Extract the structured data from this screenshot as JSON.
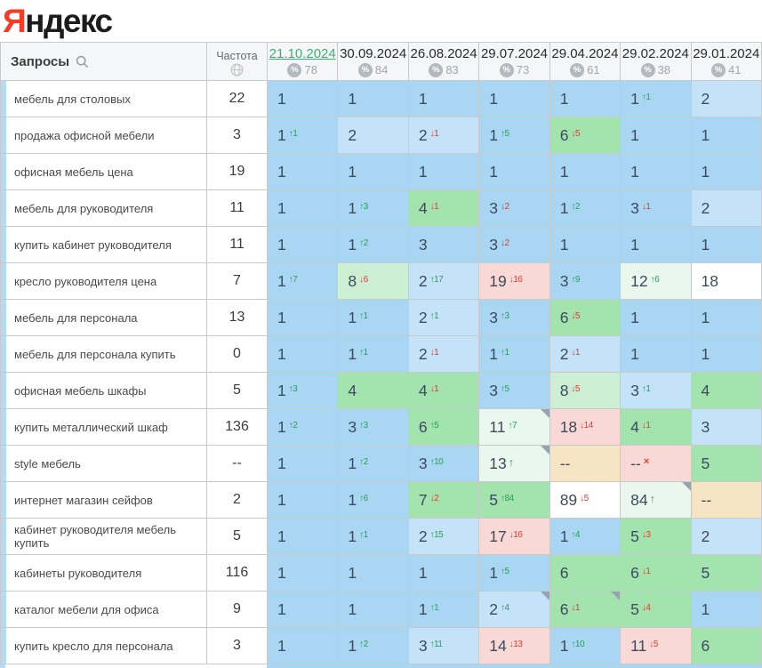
{
  "logo": {
    "first_letter": "Я",
    "rest": "ндекс"
  },
  "colors": {
    "logo_red": "#f83b24",
    "selected_date_green": "#3fae72",
    "delta_up_green": "#2aa053",
    "delta_down_red": "#e23b32",
    "cell_blue": "#a9d6f3",
    "cell_light_blue": "#c4e2f8",
    "cell_green": "#a3e3ae",
    "cell_light_green": "#cceed3",
    "cell_pale_green": "#e9f7ee",
    "cell_pink": "#f9d9d6",
    "cell_beige": "#f6e4c2",
    "row_accent_strip": "#b5dbf6"
  },
  "table": {
    "queries_header": "Запросы",
    "frequency_header": "Частота",
    "date_columns": [
      {
        "date": "21.10.2024",
        "visibility": "78",
        "selected": true
      },
      {
        "date": "30.09.2024",
        "visibility": "84",
        "selected": false
      },
      {
        "date": "26.08.2024",
        "visibility": "83",
        "selected": false
      },
      {
        "date": "29.07.2024",
        "visibility": "73",
        "selected": false
      },
      {
        "date": "29.04.2024",
        "visibility": "61",
        "selected": false
      },
      {
        "date": "29.02.2024",
        "visibility": "38",
        "selected": false
      },
      {
        "date": "29.01.2024",
        "visibility": "41",
        "selected": false
      }
    ],
    "rows": [
      {
        "query": "мебель для столовых",
        "frequency": "22",
        "cells": [
          {
            "v": "1",
            "bg": "blue"
          },
          {
            "v": "1",
            "bg": "blue"
          },
          {
            "v": "1",
            "bg": "blue"
          },
          {
            "v": "1",
            "bg": "blue"
          },
          {
            "v": "1",
            "bg": "blue"
          },
          {
            "v": "1",
            "d": "1",
            "dir": "up",
            "bg": "blue"
          },
          {
            "v": "2",
            "bg": "blue2"
          }
        ]
      },
      {
        "query": "продажа офисной мебели",
        "frequency": "3",
        "cells": [
          {
            "v": "1",
            "d": "1",
            "dir": "up",
            "bg": "blue"
          },
          {
            "v": "2",
            "bg": "blue2"
          },
          {
            "v": "2",
            "d": "1",
            "dir": "down",
            "bg": "blue2"
          },
          {
            "v": "1",
            "d": "5",
            "dir": "up",
            "bg": "blue"
          },
          {
            "v": "6",
            "d": "5",
            "dir": "down",
            "bg": "green"
          },
          {
            "v": "1",
            "bg": "blue"
          },
          {
            "v": "1",
            "bg": "blue"
          }
        ]
      },
      {
        "query": "офисная мебель цена",
        "frequency": "19",
        "cells": [
          {
            "v": "1",
            "bg": "blue"
          },
          {
            "v": "1",
            "bg": "blue"
          },
          {
            "v": "1",
            "bg": "blue"
          },
          {
            "v": "1",
            "bg": "blue"
          },
          {
            "v": "1",
            "bg": "blue"
          },
          {
            "v": "1",
            "bg": "blue"
          },
          {
            "v": "1",
            "bg": "blue"
          }
        ]
      },
      {
        "query": "мебель для руководителя",
        "frequency": "11",
        "cells": [
          {
            "v": "1",
            "bg": "blue"
          },
          {
            "v": "1",
            "d": "3",
            "dir": "up",
            "bg": "blue"
          },
          {
            "v": "4",
            "d": "1",
            "dir": "down",
            "bg": "green"
          },
          {
            "v": "3",
            "d": "2",
            "dir": "down",
            "bg": "blue"
          },
          {
            "v": "1",
            "d": "2",
            "dir": "up",
            "bg": "blue"
          },
          {
            "v": "3",
            "d": "1",
            "dir": "down",
            "bg": "blue"
          },
          {
            "v": "2",
            "bg": "blue2"
          }
        ]
      },
      {
        "query": "купить кабинет руководителя",
        "frequency": "11",
        "cells": [
          {
            "v": "1",
            "bg": "blue"
          },
          {
            "v": "1",
            "d": "2",
            "dir": "up",
            "bg": "blue"
          },
          {
            "v": "3",
            "bg": "blue"
          },
          {
            "v": "3",
            "d": "2",
            "dir": "down",
            "bg": "blue"
          },
          {
            "v": "1",
            "bg": "blue"
          },
          {
            "v": "1",
            "bg": "blue"
          },
          {
            "v": "1",
            "bg": "blue"
          }
        ]
      },
      {
        "query": "кресло руководителя цена",
        "frequency": "7",
        "cells": [
          {
            "v": "1",
            "d": "7",
            "dir": "up",
            "bg": "blue"
          },
          {
            "v": "8",
            "d": "6",
            "dir": "down",
            "bg": "green2"
          },
          {
            "v": "2",
            "d": "17",
            "dir": "up",
            "bg": "blue2"
          },
          {
            "v": "19",
            "d": "16",
            "dir": "down",
            "bg": "pink"
          },
          {
            "v": "3",
            "d": "9",
            "dir": "up",
            "bg": "blue"
          },
          {
            "v": "12",
            "d": "6",
            "dir": "up",
            "bg": "green3"
          },
          {
            "v": "18",
            "bg": "white"
          }
        ]
      },
      {
        "query": "мебель для персонала",
        "frequency": "13",
        "cells": [
          {
            "v": "1",
            "bg": "blue"
          },
          {
            "v": "1",
            "d": "1",
            "dir": "up",
            "bg": "blue"
          },
          {
            "v": "2",
            "d": "1",
            "dir": "up",
            "bg": "blue2"
          },
          {
            "v": "3",
            "d": "3",
            "dir": "up",
            "bg": "blue"
          },
          {
            "v": "6",
            "d": "5",
            "dir": "down",
            "bg": "green"
          },
          {
            "v": "1",
            "bg": "blue"
          },
          {
            "v": "1",
            "bg": "blue"
          }
        ]
      },
      {
        "query": "мебель для персонала купить",
        "frequency": "0",
        "cells": [
          {
            "v": "1",
            "bg": "blue"
          },
          {
            "v": "1",
            "d": "1",
            "dir": "up",
            "bg": "blue"
          },
          {
            "v": "2",
            "d": "1",
            "dir": "down",
            "bg": "blue2"
          },
          {
            "v": "1",
            "d": "1",
            "dir": "up",
            "bg": "blue"
          },
          {
            "v": "2",
            "d": "1",
            "dir": "down",
            "bg": "blue2"
          },
          {
            "v": "1",
            "bg": "blue"
          },
          {
            "v": "1",
            "bg": "blue"
          }
        ]
      },
      {
        "query": "офисная мебель шкафы",
        "frequency": "5",
        "cells": [
          {
            "v": "1",
            "d": "3",
            "dir": "up",
            "bg": "blue"
          },
          {
            "v": "4",
            "bg": "green"
          },
          {
            "v": "4",
            "d": "1",
            "dir": "down",
            "bg": "green"
          },
          {
            "v": "3",
            "d": "5",
            "dir": "up",
            "bg": "blue"
          },
          {
            "v": "8",
            "d": "5",
            "dir": "down",
            "bg": "green2"
          },
          {
            "v": "3",
            "d": "1",
            "dir": "up",
            "bg": "blue2"
          },
          {
            "v": "4",
            "bg": "green"
          }
        ]
      },
      {
        "query": "купить металлический шкаф",
        "frequency": "136",
        "cells": [
          {
            "v": "1",
            "d": "2",
            "dir": "up",
            "bg": "blue"
          },
          {
            "v": "3",
            "d": "3",
            "dir": "up",
            "bg": "blue"
          },
          {
            "v": "6",
            "d": "5",
            "dir": "up",
            "bg": "green"
          },
          {
            "v": "11",
            "d": "7",
            "dir": "up",
            "bg": "green3",
            "corner": true
          },
          {
            "v": "18",
            "d": "14",
            "dir": "down",
            "bg": "pink"
          },
          {
            "v": "4",
            "d": "1",
            "dir": "down",
            "bg": "green"
          },
          {
            "v": "3",
            "bg": "blue2"
          }
        ]
      },
      {
        "query": "style мебель",
        "frequency": "--",
        "cells": [
          {
            "v": "1",
            "bg": "blue"
          },
          {
            "v": "1",
            "d": "2",
            "dir": "up",
            "bg": "blue"
          },
          {
            "v": "3",
            "d": "10",
            "dir": "up",
            "bg": "blue"
          },
          {
            "v": "13",
            "d": "",
            "dir": "up",
            "bg": "green3",
            "corner": true
          },
          {
            "v": "--",
            "bg": "beige"
          },
          {
            "v": "--",
            "d": "x",
            "bg": "pink"
          },
          {
            "v": "5",
            "bg": "green"
          }
        ]
      },
      {
        "query": "интернет магазин сейфов",
        "frequency": "2",
        "cells": [
          {
            "v": "1",
            "bg": "blue"
          },
          {
            "v": "1",
            "d": "6",
            "dir": "up",
            "bg": "blue"
          },
          {
            "v": "7",
            "d": "2",
            "dir": "down",
            "bg": "green"
          },
          {
            "v": "5",
            "d": "84",
            "dir": "up",
            "bg": "green"
          },
          {
            "v": "89",
            "d": "5",
            "dir": "down",
            "bg": "white"
          },
          {
            "v": "84",
            "d": "",
            "dir": "up",
            "bg": "green3",
            "corner": true
          },
          {
            "v": "--",
            "bg": "beige"
          }
        ]
      },
      {
        "query": "кабинет руководителя мебель купить",
        "frequency": "5",
        "cells": [
          {
            "v": "1",
            "bg": "blue"
          },
          {
            "v": "1",
            "d": "1",
            "dir": "up",
            "bg": "blue"
          },
          {
            "v": "2",
            "d": "15",
            "dir": "up",
            "bg": "blue2"
          },
          {
            "v": "17",
            "d": "16",
            "dir": "down",
            "bg": "pink"
          },
          {
            "v": "1",
            "d": "4",
            "dir": "up",
            "bg": "blue"
          },
          {
            "v": "5",
            "d": "3",
            "dir": "down",
            "bg": "green"
          },
          {
            "v": "2",
            "bg": "blue2"
          }
        ]
      },
      {
        "query": "кабинеты руководителя",
        "frequency": "116",
        "cells": [
          {
            "v": "1",
            "bg": "blue"
          },
          {
            "v": "1",
            "bg": "blue"
          },
          {
            "v": "1",
            "bg": "blue"
          },
          {
            "v": "1",
            "d": "5",
            "dir": "up",
            "bg": "blue"
          },
          {
            "v": "6",
            "bg": "green"
          },
          {
            "v": "6",
            "d": "1",
            "dir": "down",
            "bg": "green"
          },
          {
            "v": "5",
            "bg": "green"
          }
        ]
      },
      {
        "query": "каталог мебели для офиса",
        "frequency": "9",
        "cells": [
          {
            "v": "1",
            "bg": "blue"
          },
          {
            "v": "1",
            "bg": "blue"
          },
          {
            "v": "1",
            "d": "1",
            "dir": "up",
            "bg": "blue"
          },
          {
            "v": "2",
            "d": "4",
            "dir": "up",
            "bg": "blue2",
            "corner": true
          },
          {
            "v": "6",
            "d": "1",
            "dir": "down",
            "bg": "green",
            "corner": true
          },
          {
            "v": "5",
            "d": "4",
            "dir": "down",
            "bg": "green"
          },
          {
            "v": "1",
            "bg": "blue"
          }
        ]
      },
      {
        "query": "купить кресло для персонала",
        "frequency": "3",
        "cells": [
          {
            "v": "1",
            "bg": "blue"
          },
          {
            "v": "1",
            "d": "2",
            "dir": "up",
            "bg": "blue"
          },
          {
            "v": "3",
            "d": "11",
            "dir": "up",
            "bg": "blue2"
          },
          {
            "v": "14",
            "d": "13",
            "dir": "down",
            "bg": "pink"
          },
          {
            "v": "1",
            "d": "10",
            "dir": "up",
            "bg": "blue"
          },
          {
            "v": "11",
            "d": "5",
            "dir": "down",
            "bg": "pink"
          },
          {
            "v": "6",
            "bg": "green"
          }
        ]
      }
    ]
  }
}
